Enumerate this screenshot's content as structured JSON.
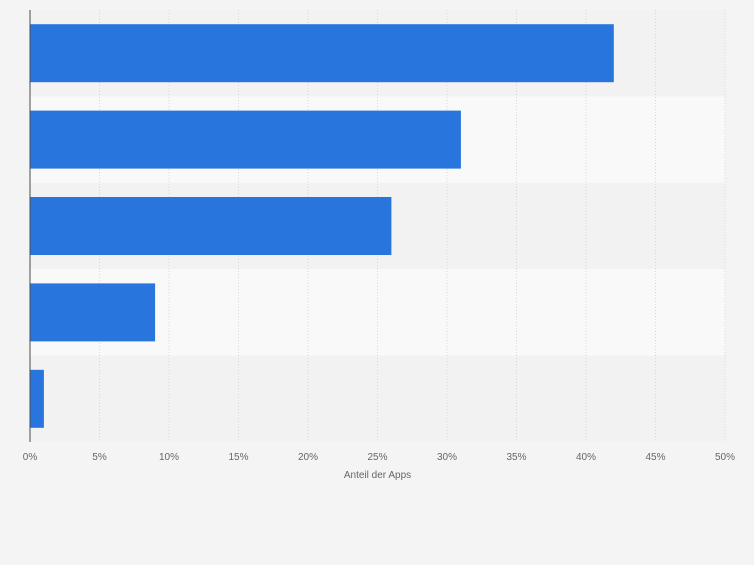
{
  "chart_data": {
    "type": "bar",
    "orientation": "horizontal",
    "categories": [
      "",
      "",
      "",
      "",
      ""
    ],
    "values": [
      42,
      31,
      26,
      9,
      1
    ],
    "xlabel": "Anteil der Apps",
    "ylabel": "",
    "xlim": [
      0,
      50
    ],
    "xticks": [
      0,
      5,
      10,
      15,
      20,
      25,
      30,
      35,
      40,
      45,
      50
    ],
    "tick_suffix": "%",
    "grid": true,
    "legend": "none",
    "colors": {
      "bar": "#2876dd",
      "band_dark": "#f2f2f2",
      "band_light": "#f9f9f9",
      "grid": "#d8d8d8",
      "axis": "#4a4a4a",
      "text": "#666666"
    }
  }
}
